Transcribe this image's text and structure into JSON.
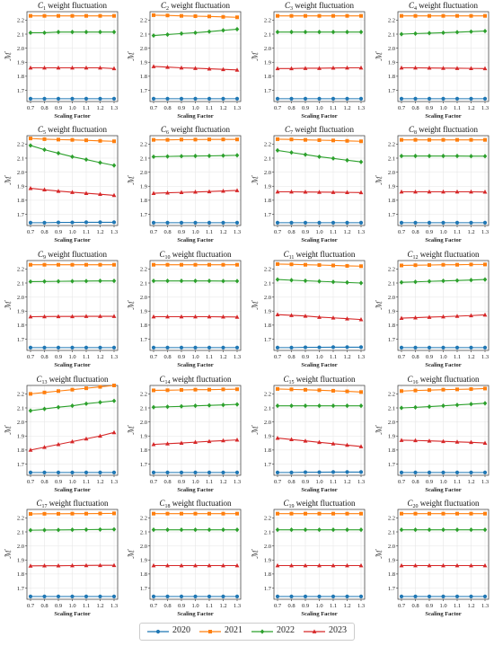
{
  "chart_data": {
    "type": "line",
    "layout": "5x4 grid of small multiples",
    "shared": {
      "x": [
        0.7,
        0.8,
        0.9,
        1.0,
        1.1,
        1.2,
        1.3
      ],
      "x_tick_labels": [
        "0.7",
        "0.8",
        "0.9",
        "1.0",
        "1.1",
        "1.2",
        "1.3"
      ],
      "xlabel": "Scaling Factor",
      "ylabel": "ℳ",
      "ylim": [
        1.62,
        2.26
      ],
      "y_ticks": [
        1.7,
        1.8,
        1.9,
        2.0,
        2.1,
        2.2
      ],
      "y_tick_labels": [
        "1.7",
        "1.8",
        "1.9",
        "2.0",
        "2.1",
        "2.2"
      ],
      "grid": true,
      "legend_placement": "bottom-center"
    },
    "series_styles": [
      {
        "name": "2020",
        "color": "#1f77b4",
        "marker": "circle"
      },
      {
        "name": "2021",
        "color": "#ff7f0e",
        "marker": "square"
      },
      {
        "name": "2022",
        "color": "#2ca02c",
        "marker": "diamond"
      },
      {
        "name": "2023",
        "color": "#d62728",
        "marker": "triangle"
      }
    ],
    "panels": [
      {
        "title_prefix": "C",
        "sub": "1",
        "title_suffix": " weight fluctuation",
        "series": [
          [
            1.64,
            1.64,
            1.64,
            1.64,
            1.64,
            1.64,
            1.64
          ],
          [
            2.23,
            2.23,
            2.23,
            2.23,
            2.23,
            2.23,
            2.23
          ],
          [
            2.11,
            2.11,
            2.115,
            2.115,
            2.115,
            2.115,
            2.115
          ],
          [
            1.86,
            1.86,
            1.86,
            1.86,
            1.86,
            1.86,
            1.855
          ]
        ]
      },
      {
        "title_prefix": "C",
        "sub": "2",
        "title_suffix": " weight fluctuation",
        "series": [
          [
            1.64,
            1.64,
            1.64,
            1.64,
            1.64,
            1.64,
            1.64
          ],
          [
            2.235,
            2.233,
            2.23,
            2.228,
            2.226,
            2.223,
            2.22
          ],
          [
            2.09,
            2.097,
            2.104,
            2.11,
            2.118,
            2.127,
            2.135
          ],
          [
            1.87,
            1.865,
            1.86,
            1.857,
            1.853,
            1.849,
            1.845
          ]
        ]
      },
      {
        "title_prefix": "C",
        "sub": "3",
        "title_suffix": " weight fluctuation",
        "series": [
          [
            1.64,
            1.64,
            1.64,
            1.64,
            1.64,
            1.64,
            1.64
          ],
          [
            2.23,
            2.23,
            2.23,
            2.23,
            2.23,
            2.23,
            2.23
          ],
          [
            2.115,
            2.115,
            2.115,
            2.115,
            2.115,
            2.115,
            2.115
          ],
          [
            1.855,
            1.855,
            1.857,
            1.857,
            1.859,
            1.86,
            1.86
          ]
        ]
      },
      {
        "title_prefix": "C",
        "sub": "4",
        "title_suffix": " weight fluctuation",
        "series": [
          [
            1.64,
            1.64,
            1.64,
            1.64,
            1.64,
            1.64,
            1.64
          ],
          [
            2.23,
            2.23,
            2.23,
            2.23,
            2.23,
            2.23,
            2.23
          ],
          [
            2.1,
            2.104,
            2.107,
            2.11,
            2.114,
            2.118,
            2.122
          ],
          [
            1.86,
            1.86,
            1.859,
            1.858,
            1.857,
            1.856,
            1.855
          ]
        ]
      },
      {
        "title_prefix": "C",
        "sub": "5",
        "title_suffix": " weight fluctuation",
        "series": [
          [
            1.64,
            1.64,
            1.642,
            1.642,
            1.643,
            1.643,
            1.643
          ],
          [
            2.24,
            2.235,
            2.232,
            2.23,
            2.227,
            2.223,
            2.22
          ],
          [
            2.19,
            2.16,
            2.135,
            2.11,
            2.09,
            2.068,
            2.048
          ],
          [
            1.885,
            1.875,
            1.865,
            1.857,
            1.85,
            1.843,
            1.835
          ]
        ]
      },
      {
        "title_prefix": "C",
        "sub": "6",
        "title_suffix": " weight fluctuation",
        "series": [
          [
            1.64,
            1.64,
            1.64,
            1.64,
            1.64,
            1.64,
            1.64
          ],
          [
            2.23,
            2.23,
            2.232,
            2.232,
            2.233,
            2.233,
            2.233
          ],
          [
            2.11,
            2.112,
            2.114,
            2.115,
            2.116,
            2.118,
            2.12
          ],
          [
            1.85,
            1.853,
            1.856,
            1.859,
            1.862,
            1.866,
            1.87
          ]
        ]
      },
      {
        "title_prefix": "C",
        "sub": "7",
        "title_suffix": " weight fluctuation",
        "series": [
          [
            1.64,
            1.64,
            1.64,
            1.64,
            1.64,
            1.64,
            1.64
          ],
          [
            2.235,
            2.233,
            2.23,
            2.228,
            2.226,
            2.223,
            2.22
          ],
          [
            2.155,
            2.14,
            2.125,
            2.11,
            2.098,
            2.085,
            2.073
          ],
          [
            1.86,
            1.86,
            1.859,
            1.858,
            1.857,
            1.856,
            1.855
          ]
        ]
      },
      {
        "title_prefix": "C",
        "sub": "8",
        "title_suffix": " weight fluctuation",
        "series": [
          [
            1.64,
            1.64,
            1.64,
            1.64,
            1.64,
            1.64,
            1.64
          ],
          [
            2.23,
            2.23,
            2.23,
            2.23,
            2.23,
            2.23,
            2.23
          ],
          [
            2.115,
            2.115,
            2.115,
            2.115,
            2.115,
            2.114,
            2.114
          ],
          [
            1.86,
            1.86,
            1.86,
            1.86,
            1.86,
            1.86,
            1.859
          ]
        ]
      },
      {
        "title_prefix": "C",
        "sub": "9",
        "title_suffix": " weight fluctuation",
        "series": [
          [
            1.64,
            1.64,
            1.64,
            1.64,
            1.64,
            1.64,
            1.64
          ],
          [
            2.23,
            2.23,
            2.23,
            2.23,
            2.23,
            2.23,
            2.23
          ],
          [
            2.11,
            2.111,
            2.112,
            2.113,
            2.114,
            2.115,
            2.115
          ],
          [
            1.86,
            1.861,
            1.862,
            1.862,
            1.863,
            1.863,
            1.863
          ]
        ]
      },
      {
        "title_prefix": "C",
        "sub": "10",
        "title_suffix": " weight fluctuation",
        "series": [
          [
            1.64,
            1.64,
            1.64,
            1.64,
            1.64,
            1.64,
            1.64
          ],
          [
            2.23,
            2.23,
            2.23,
            2.23,
            2.23,
            2.23,
            2.23
          ],
          [
            2.115,
            2.115,
            2.115,
            2.115,
            2.115,
            2.114,
            2.114
          ],
          [
            1.86,
            1.86,
            1.86,
            1.86,
            1.86,
            1.859,
            1.858
          ]
        ]
      },
      {
        "title_prefix": "C",
        "sub": "11",
        "title_suffix": " weight fluctuation",
        "series": [
          [
            1.64,
            1.64,
            1.642,
            1.642,
            1.643,
            1.643,
            1.643
          ],
          [
            2.235,
            2.233,
            2.23,
            2.228,
            2.225,
            2.222,
            2.22
          ],
          [
            2.125,
            2.12,
            2.116,
            2.112,
            2.108,
            2.104,
            2.1
          ],
          [
            1.875,
            1.87,
            1.865,
            1.857,
            1.852,
            1.846,
            1.84
          ]
        ]
      },
      {
        "title_prefix": "C",
        "sub": "12",
        "title_suffix": " weight fluctuation",
        "series": [
          [
            1.64,
            1.64,
            1.64,
            1.64,
            1.64,
            1.64,
            1.64
          ],
          [
            2.225,
            2.227,
            2.228,
            2.23,
            2.23,
            2.232,
            2.232
          ],
          [
            2.105,
            2.108,
            2.112,
            2.115,
            2.118,
            2.121,
            2.125
          ],
          [
            1.85,
            1.853,
            1.857,
            1.86,
            1.864,
            1.868,
            1.873
          ]
        ]
      },
      {
        "title_prefix": "C",
        "sub": "13",
        "title_suffix": " weight fluctuation",
        "series": [
          [
            1.64,
            1.64,
            1.64,
            1.64,
            1.64,
            1.64,
            1.64
          ],
          [
            2.2,
            2.21,
            2.22,
            2.23,
            2.24,
            2.25,
            2.26
          ],
          [
            2.08,
            2.093,
            2.105,
            2.115,
            2.13,
            2.14,
            2.15
          ],
          [
            1.8,
            1.82,
            1.84,
            1.86,
            1.88,
            1.9,
            1.925
          ]
        ]
      },
      {
        "title_prefix": "C",
        "sub": "14",
        "title_suffix": " weight fluctuation",
        "series": [
          [
            1.64,
            1.64,
            1.64,
            1.64,
            1.64,
            1.64,
            1.64
          ],
          [
            2.225,
            2.226,
            2.228,
            2.23,
            2.23,
            2.232,
            2.233
          ],
          [
            2.105,
            2.108,
            2.111,
            2.115,
            2.118,
            2.121,
            2.125
          ],
          [
            1.84,
            1.845,
            1.85,
            1.856,
            1.862,
            1.867,
            1.872
          ]
        ]
      },
      {
        "title_prefix": "C",
        "sub": "15",
        "title_suffix": " weight fluctuation",
        "series": [
          [
            1.64,
            1.64,
            1.642,
            1.642,
            1.643,
            1.643,
            1.643
          ],
          [
            2.235,
            2.232,
            2.229,
            2.226,
            2.222,
            2.218,
            2.213
          ],
          [
            2.115,
            2.115,
            2.115,
            2.115,
            2.115,
            2.115,
            2.115
          ],
          [
            1.885,
            1.875,
            1.865,
            1.855,
            1.845,
            1.835,
            1.825
          ]
        ]
      },
      {
        "title_prefix": "C",
        "sub": "16",
        "title_suffix": " weight fluctuation",
        "series": [
          [
            1.64,
            1.64,
            1.64,
            1.64,
            1.64,
            1.64,
            1.64
          ],
          [
            2.22,
            2.224,
            2.227,
            2.23,
            2.232,
            2.234,
            2.238
          ],
          [
            2.1,
            2.104,
            2.109,
            2.115,
            2.121,
            2.127,
            2.133
          ],
          [
            1.87,
            1.868,
            1.865,
            1.862,
            1.858,
            1.855,
            1.85
          ]
        ]
      },
      {
        "title_prefix": "C",
        "sub": "17",
        "title_suffix": " weight fluctuation",
        "series": [
          [
            1.64,
            1.64,
            1.64,
            1.64,
            1.64,
            1.64,
            1.64
          ],
          [
            2.228,
            2.229,
            2.229,
            2.23,
            2.23,
            2.231,
            2.232
          ],
          [
            2.112,
            2.113,
            2.114,
            2.115,
            2.116,
            2.117,
            2.118
          ],
          [
            1.858,
            1.859,
            1.859,
            1.86,
            1.861,
            1.862,
            1.862
          ]
        ]
      },
      {
        "title_prefix": "C",
        "sub": "18",
        "title_suffix": " weight fluctuation",
        "series": [
          [
            1.64,
            1.64,
            1.64,
            1.64,
            1.64,
            1.64,
            1.64
          ],
          [
            2.23,
            2.23,
            2.23,
            2.23,
            2.23,
            2.23,
            2.23
          ],
          [
            2.115,
            2.115,
            2.115,
            2.115,
            2.115,
            2.115,
            2.115
          ],
          [
            1.86,
            1.86,
            1.86,
            1.86,
            1.86,
            1.86,
            1.86
          ]
        ]
      },
      {
        "title_prefix": "C",
        "sub": "19",
        "title_suffix": " weight fluctuation",
        "series": [
          [
            1.64,
            1.64,
            1.64,
            1.64,
            1.64,
            1.64,
            1.64
          ],
          [
            2.23,
            2.23,
            2.23,
            2.23,
            2.23,
            2.23,
            2.23
          ],
          [
            2.115,
            2.115,
            2.115,
            2.115,
            2.115,
            2.115,
            2.115
          ],
          [
            1.86,
            1.86,
            1.86,
            1.86,
            1.86,
            1.86,
            1.86
          ]
        ]
      },
      {
        "title_prefix": "C",
        "sub": "20",
        "title_suffix": " weight fluctuation",
        "series": [
          [
            1.64,
            1.64,
            1.64,
            1.64,
            1.64,
            1.64,
            1.64
          ],
          [
            2.23,
            2.23,
            2.23,
            2.23,
            2.23,
            2.23,
            2.23
          ],
          [
            2.115,
            2.115,
            2.115,
            2.115,
            2.115,
            2.115,
            2.115
          ],
          [
            1.86,
            1.86,
            1.86,
            1.86,
            1.86,
            1.86,
            1.86
          ]
        ]
      }
    ]
  }
}
